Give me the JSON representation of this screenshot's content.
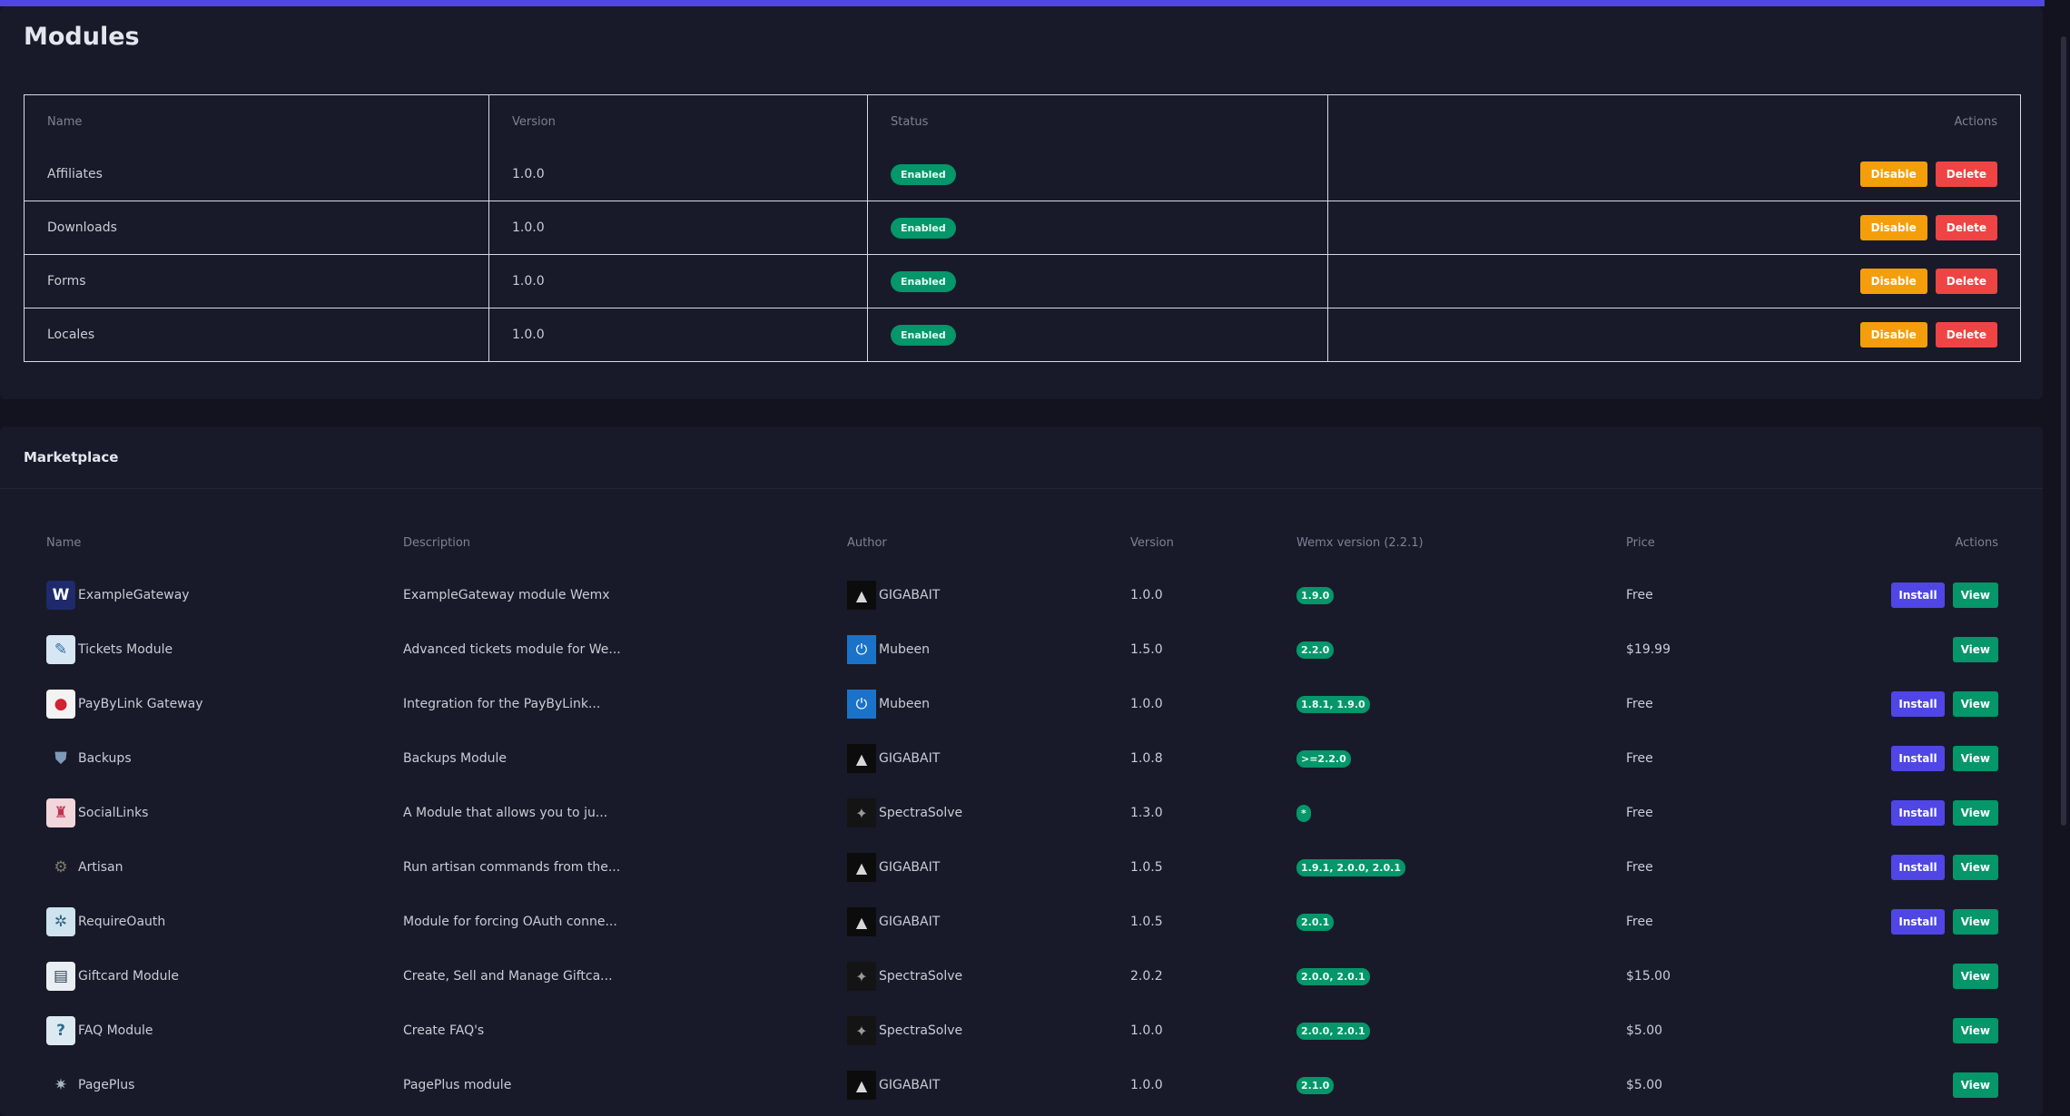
{
  "page_title": "Modules",
  "modules_table": {
    "headers": [
      "Name",
      "Version",
      "Status",
      "Actions"
    ],
    "rows": [
      {
        "name": "Affiliates",
        "version": "1.0.0",
        "status": "Enabled"
      },
      {
        "name": "Downloads",
        "version": "1.0.0",
        "status": "Enabled"
      },
      {
        "name": "Forms",
        "version": "1.0.0",
        "status": "Enabled"
      },
      {
        "name": "Locales",
        "version": "1.0.0",
        "status": "Enabled"
      }
    ],
    "disable_label": "Disable",
    "delete_label": "Delete"
  },
  "marketplace": {
    "title": "Marketplace",
    "headers": [
      "Name",
      "Description",
      "Author",
      "Version",
      "Wemx version (2.2.1)",
      "Price",
      "Actions"
    ],
    "install_label": "Install",
    "view_label": "View",
    "rows": [
      {
        "name": "ExampleGateway",
        "description": "ExampleGateway module Wemx",
        "author": "GIGABAIT",
        "version": "1.0.0",
        "wemx": "1.9.0",
        "price": "Free",
        "installable": true,
        "icon": "wemx-logo-icon",
        "author_icon": "hooded-figure-icon"
      },
      {
        "name": "Tickets Module",
        "description": "Advanced tickets module for We...",
        "author": "Mubeen",
        "version": "1.5.0",
        "wemx": "2.2.0",
        "price": "$19.99",
        "installable": false,
        "icon": "ticket-icon",
        "author_icon": "power-icon"
      },
      {
        "name": "PayByLink Gateway",
        "description": "Integration for the PayByLink...",
        "author": "Mubeen",
        "version": "1.0.0",
        "wemx": "1.8.1, 1.9.0",
        "price": "Free",
        "installable": true,
        "icon": "paybylink-logo-icon",
        "author_icon": "power-icon"
      },
      {
        "name": "Backups",
        "description": "Backups Module",
        "author": "GIGABAIT",
        "version": "1.0.8",
        "wemx": ">=2.2.0",
        "price": "Free",
        "installable": true,
        "icon": "shield-icon",
        "author_icon": "hooded-figure-icon"
      },
      {
        "name": "SocialLinks",
        "description": "A Module that allows you to ju...",
        "author": "SpectraSolve",
        "version": "1.3.0",
        "wemx": "*",
        "price": "Free",
        "installable": true,
        "icon": "social-links-icon",
        "author_icon": "spectrasolve-logo-icon"
      },
      {
        "name": "Artisan",
        "description": "Run artisan commands from the...",
        "author": "GIGABAIT",
        "version": "1.0.5",
        "wemx": "1.9.1, 2.0.0, 2.0.1",
        "price": "Free",
        "installable": true,
        "icon": "artisan-icon",
        "author_icon": "hooded-figure-icon"
      },
      {
        "name": "RequireOauth",
        "description": "Module for forcing OAuth conne...",
        "author": "GIGABAIT",
        "version": "1.0.5",
        "wemx": "2.0.1",
        "price": "Free",
        "installable": true,
        "icon": "oauth-gear-icon",
        "author_icon": "hooded-figure-icon"
      },
      {
        "name": "Giftcard Module",
        "description": "Create, Sell and Manage Giftca...",
        "author": "SpectraSolve",
        "version": "2.0.2",
        "wemx": "2.0.0, 2.0.1",
        "price": "$15.00",
        "installable": false,
        "icon": "giftcard-icon",
        "author_icon": "spectrasolve-logo-icon"
      },
      {
        "name": "FAQ Module",
        "description": "Create FAQ's",
        "author": "SpectraSolve",
        "version": "1.0.0",
        "wemx": "2.0.0, 2.0.1",
        "price": "$5.00",
        "installable": false,
        "icon": "faq-icon",
        "author_icon": "spectrasolve-logo-icon"
      },
      {
        "name": "PagePlus",
        "description": "PagePlus module",
        "author": "GIGABAIT",
        "version": "1.0.0",
        "wemx": "2.1.0",
        "price": "$5.00",
        "installable": false,
        "icon": "pageplus-icon",
        "author_icon": "hooded-figure-icon"
      }
    ]
  },
  "colors": {
    "accent": "#4f46e5",
    "success": "#059669",
    "warning": "#f59e0b",
    "danger": "#ef4444",
    "background": "#12131f",
    "card": "#181a29"
  }
}
